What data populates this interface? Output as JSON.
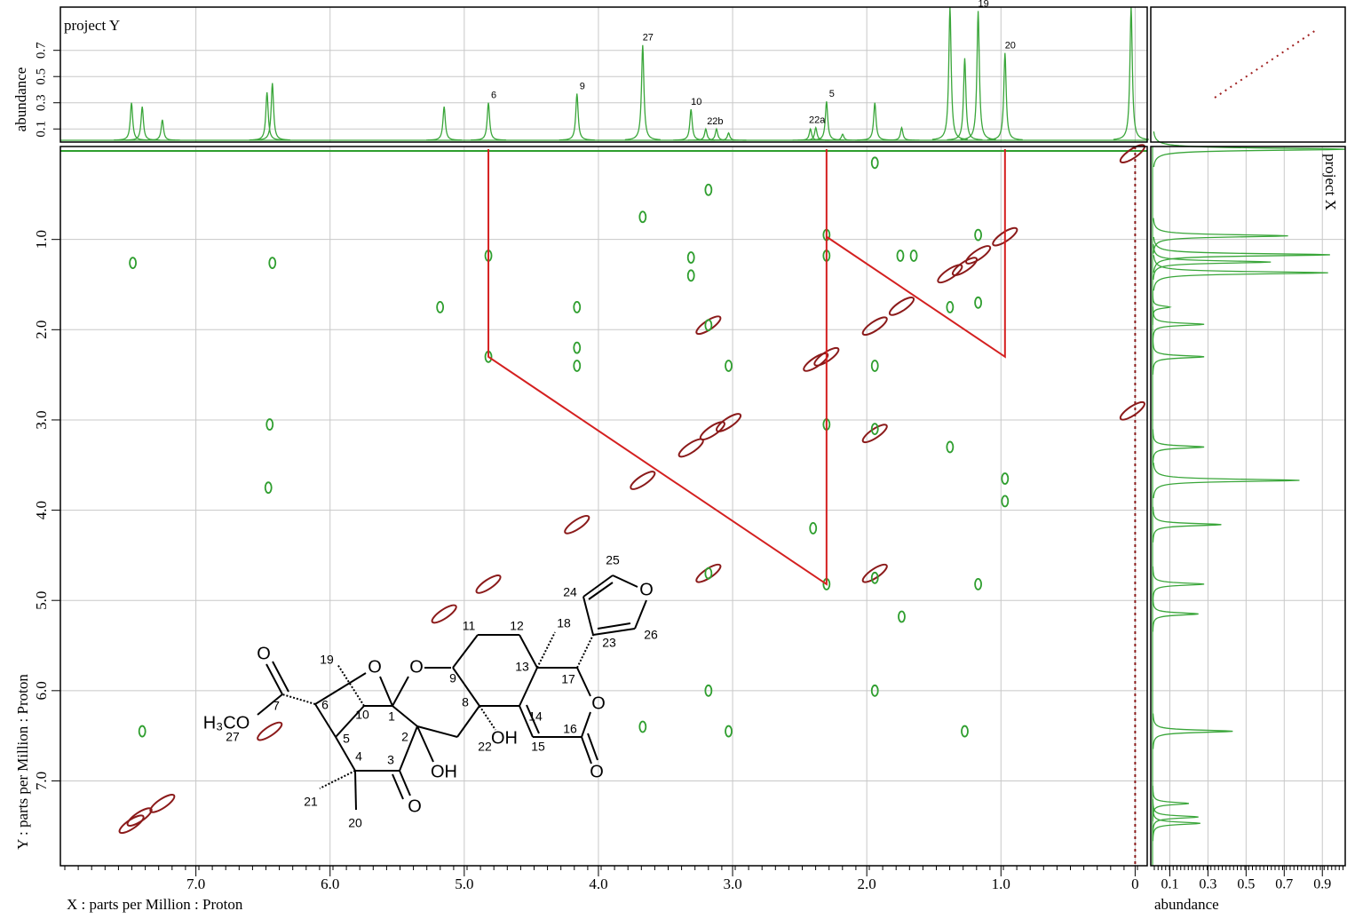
{
  "chart_data": [
    {
      "type": "line",
      "title": "project Y",
      "ylabel": "abundance",
      "color": "#3aa63a",
      "xlim": [
        8.01,
        -0.09
      ],
      "ylim": [
        0,
        1.03
      ],
      "yticks": [
        0.1,
        0.3,
        0.5,
        0.7
      ],
      "shifts": [
        7.48,
        7.4,
        7.25,
        6.47,
        6.43,
        5.15,
        4.82,
        4.16,
        3.67,
        3.31,
        3.2,
        3.12,
        3.03,
        2.42,
        2.38,
        2.3,
        2.18,
        1.94,
        1.74,
        1.38,
        1.27,
        1.17,
        0.97,
        0.03
      ],
      "values": [
        0.3,
        0.27,
        0.17,
        0.38,
        0.45,
        0.27,
        0.3,
        0.37,
        0.74,
        0.25,
        0.1,
        0.1,
        0.07,
        0.1,
        0.11,
        0.31,
        0.06,
        0.3,
        0.11,
        1.03,
        0.64,
        1.0,
        0.68,
        1.03
      ],
      "annotations": [
        {
          "text": "6",
          "x": 4.82,
          "y": 0.3
        },
        {
          "text": "9",
          "x": 4.16,
          "y": 0.37
        },
        {
          "text": "27",
          "x": 3.67,
          "y": 0.74
        },
        {
          "text": "10",
          "x": 3.31,
          "y": 0.25
        },
        {
          "text": "22b",
          "x": 3.17,
          "y": 0.1
        },
        {
          "text": "22a",
          "x": 2.41,
          "y": 0.11
        },
        {
          "text": "5",
          "x": 2.3,
          "y": 0.31
        },
        {
          "text": "19",
          "x": 1.17,
          "y": 1.0
        },
        {
          "text": "20",
          "x": 0.97,
          "y": 0.68
        }
      ]
    },
    {
      "type": "scatter",
      "xlabel": "X : parts per Million : Proton",
      "ylabel": "Y : parts per Million : Proton",
      "xlim": [
        8.01,
        -0.09
      ],
      "ylim": [
        -0.03,
        7.94
      ],
      "grid": true,
      "xticks": [
        {
          "value": 7,
          "label": "7.0"
        },
        {
          "value": 6,
          "label": "6.0"
        },
        {
          "value": 5,
          "label": "5.0"
        },
        {
          "value": 4,
          "label": "4.0"
        },
        {
          "value": 3,
          "label": "3.0"
        },
        {
          "value": 2,
          "label": "2.0"
        },
        {
          "value": 1,
          "label": "1.0"
        },
        0
      ],
      "yticks": [
        {
          "value": 1,
          "label": "1.0"
        },
        {
          "value": 2,
          "label": "2.0"
        },
        {
          "value": 3,
          "label": "3.0"
        },
        {
          "value": 4,
          "label": "4.0"
        },
        {
          "value": 5,
          "label": "5.0"
        },
        {
          "value": 6,
          "label": "6.0"
        },
        {
          "value": 7,
          "label": "7.0"
        }
      ],
      "series": [
        {
          "color": "#8b1a1a",
          "x": [
            7.48,
            7.42,
            7.25,
            6.45,
            5.15,
            4.82,
            4.16,
            3.67,
            3.31,
            3.15,
            3.03,
            2.38,
            2.3,
            1.94,
            1.74,
            1.38,
            1.27,
            1.17,
            0.97,
            0.02,
            0.02,
            1.94,
            3.18,
            1.94,
            3.18
          ],
          "values": [
            7.48,
            7.4,
            7.25,
            6.45,
            5.15,
            4.82,
            4.16,
            3.67,
            3.31,
            3.12,
            3.03,
            2.36,
            2.3,
            1.96,
            1.74,
            1.38,
            1.3,
            1.17,
            0.97,
            0.05,
            2.9,
            3.15,
            1.95,
            4.7,
            4.7
          ]
        },
        {
          "color": "#2e9e2e",
          "x": [
            7.47,
            6.43,
            6.45,
            6.46,
            7.4,
            5.18,
            4.82,
            4.82,
            4.16,
            4.16,
            4.16,
            3.67,
            3.67,
            3.31,
            3.31,
            3.18,
            3.18,
            3.18,
            3.18,
            3.03,
            3.03,
            2.3,
            2.3,
            2.3,
            2.3,
            2.4,
            1.94,
            1.94,
            1.94,
            1.94,
            1.94,
            1.74,
            1.38,
            1.38,
            1.17,
            1.17,
            1.17,
            1.27,
            0.97,
            0.97,
            1.75,
            1.65
          ],
          "values": [
            1.26,
            1.26,
            3.05,
            3.75,
            6.45,
            1.75,
            1.18,
            2.3,
            1.75,
            2.2,
            2.4,
            0.75,
            6.4,
            1.2,
            1.4,
            0.45,
            1.95,
            4.7,
            6.0,
            2.4,
            6.45,
            0.95,
            1.18,
            3.05,
            4.82,
            4.2,
            0.15,
            3.1,
            4.75,
            6.0,
            2.4,
            5.18,
            1.75,
            3.3,
            0.95,
            1.7,
            4.82,
            6.45,
            3.65,
            3.9,
            1.18,
            1.18
          ]
        }
      ],
      "lines": [
        {
          "color": "#d42020",
          "x": [
            4.82,
            4.82,
            2.3,
            2.3
          ],
          "values": [
            0,
            2.3,
            4.82,
            0
          ]
        },
        {
          "color": "#d42020",
          "x": [
            2.3,
            0.97,
            0.97
          ],
          "values": [
            0.97,
            2.3,
            0
          ]
        }
      ]
    },
    {
      "type": "line",
      "title": "project X",
      "xlabel": "abundance",
      "color": "#3aa63a",
      "xlim": [
        0,
        1.02
      ],
      "xticks": [
        0.1,
        0.3,
        0.5,
        0.7,
        0.9
      ],
      "shifts": [
        0.0,
        0.96,
        1.17,
        1.25,
        1.37,
        1.75,
        1.94,
        2.3,
        3.3,
        3.67,
        4.16,
        4.82,
        5.15,
        6.45,
        7.25,
        7.4,
        7.47
      ],
      "values": [
        1.02,
        0.72,
        0.94,
        0.63,
        0.93,
        0.1,
        0.28,
        0.28,
        0.28,
        0.78,
        0.37,
        0.28,
        0.25,
        0.43,
        0.2,
        0.25,
        0.26
      ]
    }
  ],
  "structure": {
    "labels": [
      "1",
      "2",
      "3",
      "4",
      "5",
      "6",
      "7",
      "8",
      "9",
      "10",
      "11",
      "12",
      "13",
      "14",
      "15",
      "16",
      "17",
      "18",
      "19",
      "20",
      "21",
      "22",
      "23",
      "24",
      "25",
      "26",
      "27",
      "O",
      "O",
      "O",
      "O",
      "O",
      "O",
      "O",
      "OH",
      "OH",
      "H₃CO"
    ]
  }
}
